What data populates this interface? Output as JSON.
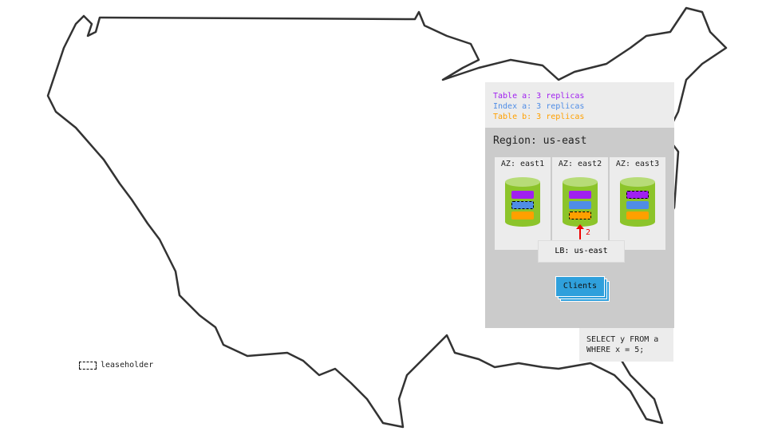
{
  "legend": {
    "items": [
      {
        "label": "Table a: 3 replicas",
        "color": "#a020f0"
      },
      {
        "label": "Index a: 3 replicas",
        "color": "#4f8de6"
      },
      {
        "label": "Table b: 3 replicas",
        "color": "#ffa000"
      }
    ]
  },
  "region": {
    "title": "Region: us-east",
    "azs": [
      {
        "label": "AZ: east1",
        "leaseholder": "Index a"
      },
      {
        "label": "AZ: east2",
        "leaseholder": "Table b"
      },
      {
        "label": "AZ: east3",
        "leaseholder": "Table a"
      }
    ],
    "lb_label": "LB: us-east",
    "arrow_label": "2",
    "clients_label": "Clients"
  },
  "query": "SELECT y FROM a\nWHERE x = 5;",
  "leaseholder_legend": "leaseholder",
  "colors": {
    "table_a": "#a020f0",
    "index_a": "#4f8de6",
    "table_b": "#ffa000",
    "node": "#8cc42a",
    "clients": "#2fa0dc",
    "arrow": "#e00000"
  }
}
